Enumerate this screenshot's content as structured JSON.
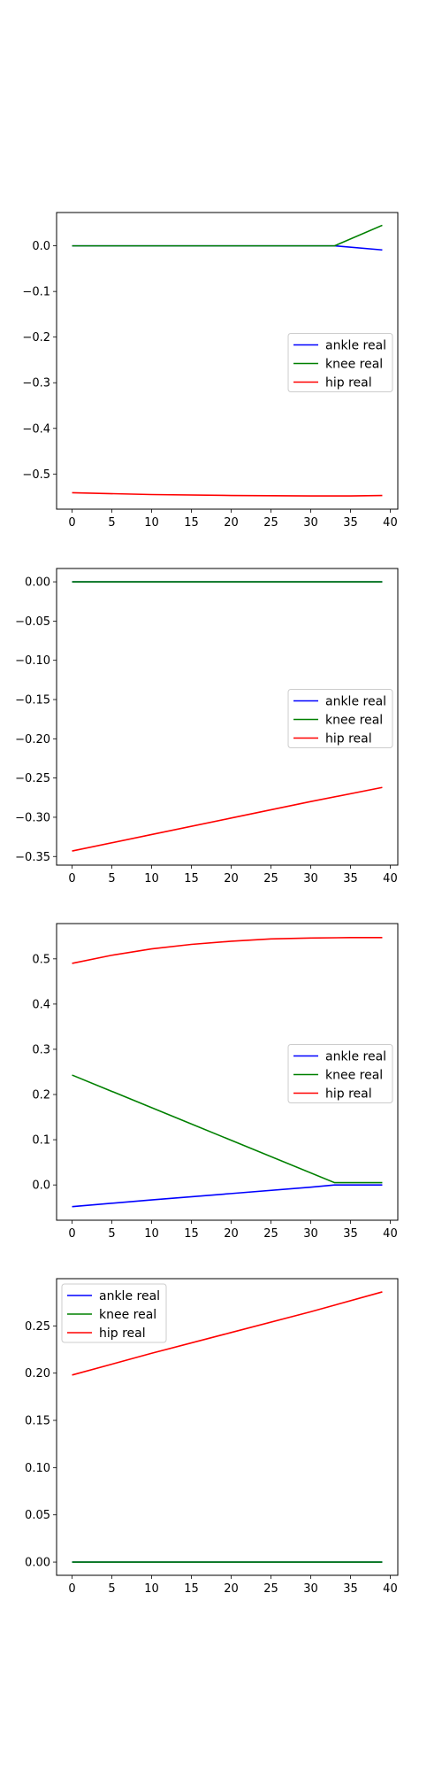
{
  "chart_data": [
    {
      "type": "line",
      "xlim": [
        -1.95,
        40.95
      ],
      "ylim": [
        -0.577,
        0.073
      ],
      "xticks": [
        0,
        5,
        10,
        15,
        20,
        25,
        30,
        35,
        40
      ],
      "yticks": [
        0.0,
        -0.1,
        -0.2,
        -0.3,
        -0.4,
        -0.5
      ],
      "ytick_labels": [
        "0.0",
        "−0.1",
        "−0.2",
        "−0.3",
        "−0.4",
        "−0.5"
      ],
      "legend": {
        "position": "center-right"
      },
      "series": [
        {
          "name": "ankle real",
          "color": "#0000ff",
          "x": [
            0,
            33,
            39
          ],
          "y": [
            0.0,
            0.0,
            -0.009
          ]
        },
        {
          "name": "knee real",
          "color": "#008000",
          "x": [
            0,
            33,
            39
          ],
          "y": [
            0.0,
            0.0,
            0.045
          ]
        },
        {
          "name": "hip real",
          "color": "#ff0000",
          "x": [
            0,
            10,
            20,
            30,
            35,
            39
          ],
          "y": [
            -0.541,
            -0.545,
            -0.547,
            -0.548,
            -0.548,
            -0.547
          ]
        }
      ]
    },
    {
      "type": "line",
      "xlim": [
        -1.95,
        40.95
      ],
      "ylim": [
        -0.361,
        0.017
      ],
      "xticks": [
        0,
        5,
        10,
        15,
        20,
        25,
        30,
        35,
        40
      ],
      "yticks": [
        0.0,
        -0.05,
        -0.1,
        -0.15,
        -0.2,
        -0.25,
        -0.3,
        -0.35
      ],
      "ytick_labels": [
        "0.00",
        "−0.05",
        "−0.10",
        "−0.15",
        "−0.20",
        "−0.25",
        "−0.30",
        "−0.35"
      ],
      "legend": {
        "position": "center-right"
      },
      "series": [
        {
          "name": "ankle real",
          "color": "#0000ff",
          "x": [
            0,
            39
          ],
          "y": [
            0.0,
            0.0
          ]
        },
        {
          "name": "knee real",
          "color": "#008000",
          "x": [
            0,
            39
          ],
          "y": [
            0.0,
            0.0
          ]
        },
        {
          "name": "hip real",
          "color": "#ff0000",
          "x": [
            0,
            10,
            20,
            30,
            39
          ],
          "y": [
            -0.343,
            -0.322,
            -0.301,
            -0.28,
            -0.262
          ]
        }
      ]
    },
    {
      "type": "line",
      "xlim": [
        -1.95,
        40.95
      ],
      "ylim": [
        -0.078,
        0.578
      ],
      "xticks": [
        0,
        5,
        10,
        15,
        20,
        25,
        30,
        35,
        40
      ],
      "yticks": [
        0.0,
        0.1,
        0.2,
        0.3,
        0.4,
        0.5
      ],
      "ytick_labels": [
        "0.0",
        "0.1",
        "0.2",
        "0.3",
        "0.4",
        "0.5"
      ],
      "legend": {
        "position": "center-right"
      },
      "series": [
        {
          "name": "ankle real",
          "color": "#0000ff",
          "x": [
            0,
            10,
            20,
            30,
            33,
            39
          ],
          "y": [
            -0.048,
            -0.033,
            -0.019,
            -0.005,
            0.0,
            0.0
          ]
        },
        {
          "name": "knee real",
          "color": "#008000",
          "x": [
            0,
            33,
            39
          ],
          "y": [
            0.243,
            0.005,
            0.005
          ]
        },
        {
          "name": "hip real",
          "color": "#ff0000",
          "x": [
            0,
            5,
            10,
            15,
            20,
            25,
            30,
            35,
            39
          ],
          "y": [
            0.49,
            0.508,
            0.522,
            0.532,
            0.539,
            0.544,
            0.546,
            0.547,
            0.547
          ]
        }
      ]
    },
    {
      "type": "line",
      "xlim": [
        -1.95,
        40.95
      ],
      "ylim": [
        -0.014,
        0.3
      ],
      "xticks": [
        0,
        5,
        10,
        15,
        20,
        25,
        30,
        35,
        40
      ],
      "yticks": [
        0.0,
        0.05,
        0.1,
        0.15,
        0.2,
        0.25
      ],
      "ytick_labels": [
        "0.00",
        "0.05",
        "0.10",
        "0.15",
        "0.20",
        "0.25"
      ],
      "legend": {
        "position": "upper-left"
      },
      "series": [
        {
          "name": "ankle real",
          "color": "#0000ff",
          "x": [
            0,
            39
          ],
          "y": [
            0.0,
            0.0
          ]
        },
        {
          "name": "knee real",
          "color": "#008000",
          "x": [
            0,
            39
          ],
          "y": [
            0.0,
            0.0
          ]
        },
        {
          "name": "hip real",
          "color": "#ff0000",
          "x": [
            0,
            10,
            20,
            30,
            39
          ],
          "y": [
            0.198,
            0.221,
            0.243,
            0.265,
            0.286
          ]
        }
      ]
    }
  ]
}
